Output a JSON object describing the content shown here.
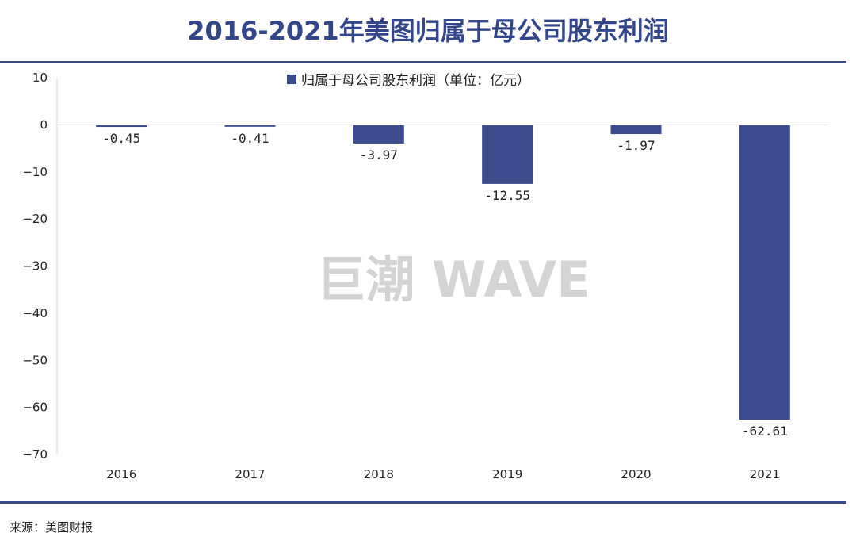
{
  "header": {
    "title": "2016-2021年美图归属于母公司股东利润"
  },
  "footer": {
    "source": "来源：美图财报"
  },
  "watermark": {
    "text": "巨潮 WAVE"
  },
  "colors": {
    "bar": "#3c4c8c",
    "rule": "#3a4c8c",
    "title": "#33468a",
    "axis": "#d9d9d9"
  },
  "chart_data": {
    "type": "bar",
    "categories": [
      "2016",
      "2017",
      "2018",
      "2019",
      "2020",
      "2021"
    ],
    "series": [
      {
        "name": "归属于母公司股东利润（单位：亿元）",
        "values": [
          -0.45,
          -0.41,
          -3.97,
          -12.55,
          -1.97,
          -62.61
        ],
        "labels": [
          "-0.45",
          "-0.41",
          "-3.97",
          "-12.55",
          "-1.97",
          "-62.61"
        ]
      }
    ],
    "ylim": [
      -70,
      10
    ],
    "yticks": [
      10,
      0,
      -10,
      -20,
      -30,
      -40,
      -50,
      -60,
      -70
    ],
    "ytick_labels": [
      "10",
      "0",
      "−10",
      "−20",
      "−30",
      "−40",
      "−50",
      "−60",
      "−70"
    ],
    "xlabel": "",
    "ylabel": "",
    "grid": false,
    "legend_position": "top-center"
  }
}
